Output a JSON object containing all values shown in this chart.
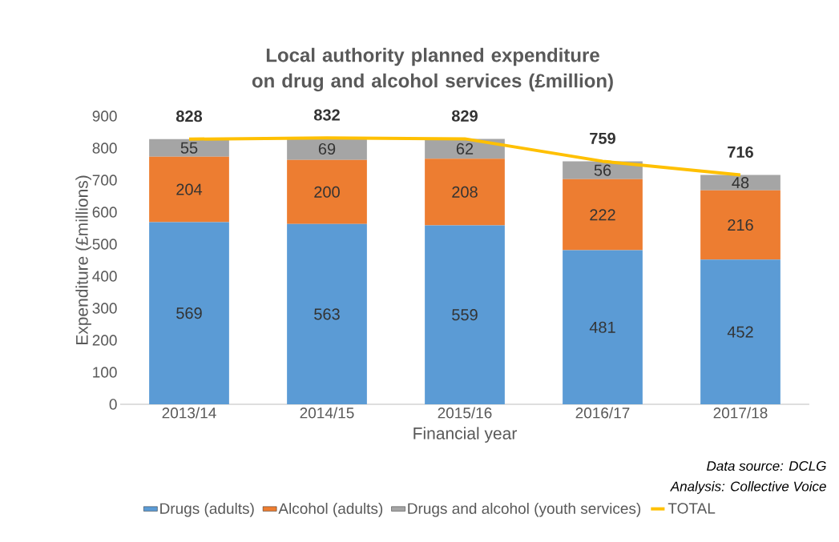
{
  "chart_data": {
    "type": "bar",
    "stacked": true,
    "title": "Local authority planned expenditure on drug and alcohol services (£million)",
    "xlabel": "Financial year",
    "ylabel": "Expenditure (£millions)",
    "categories": [
      "2013/14",
      "2014/15",
      "2015/16",
      "2016/17",
      "2017/18"
    ],
    "series": [
      {
        "name": "Drugs (adults)",
        "color": "#5b9bd5",
        "values": [
          569,
          563,
          559,
          481,
          452
        ]
      },
      {
        "name": "Alcohol (adults)",
        "color": "#ed7d31",
        "values": [
          204,
          200,
          208,
          222,
          216
        ]
      },
      {
        "name": "Drugs and alcohol (youth services)",
        "color": "#a5a5a5",
        "values": [
          55,
          69,
          62,
          56,
          48
        ]
      },
      {
        "name": "TOTAL",
        "type": "line",
        "color": "#ffc000",
        "values": [
          828,
          832,
          829,
          759,
          716
        ]
      }
    ],
    "data_labels": true,
    "ylim": [
      0,
      900
    ],
    "yticks": [
      0,
      100,
      200,
      300,
      400,
      500,
      600,
      700,
      800,
      900
    ],
    "grid": false,
    "legend": "bottom",
    "marker": "none",
    "line_style": "solid",
    "annotations": [
      "Data source: DCLG",
      "Analysis: Collective Voice"
    ]
  }
}
